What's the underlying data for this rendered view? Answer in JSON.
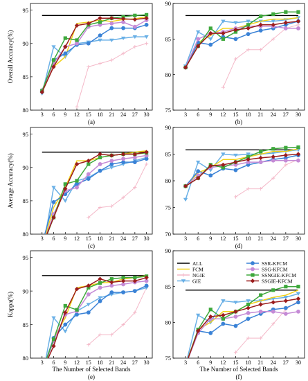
{
  "figure": {
    "shared_xlabel": "The Number of Selected Bands",
    "legend": [
      {
        "key": "all",
        "label": "ALL",
        "color": "#000000",
        "marker": "none"
      },
      {
        "key": "fcm",
        "label": "FCM",
        "color": "#f2d21b",
        "marker": "none"
      },
      {
        "key": "ngie",
        "label": "NGIE",
        "color": "#f4b8c8",
        "marker": "plus"
      },
      {
        "key": "gie",
        "label": "GIE",
        "color": "#6ab0e6",
        "marker": "triangle-down"
      },
      {
        "key": "ssr",
        "label": "SSR-KFCM",
        "color": "#3a82d6",
        "marker": "circle"
      },
      {
        "key": "ssg",
        "label": "SSG-KFCM",
        "color": "#c58bd6",
        "marker": "circle"
      },
      {
        "key": "ssngie",
        "label": "SSNGIE-KFCM",
        "color": "#3ea83c",
        "marker": "square"
      },
      {
        "key": "ssgie",
        "label": "SSGIE-KFCM",
        "color": "#9b1c1c",
        "marker": "diamond"
      }
    ]
  },
  "chart_data": [
    {
      "id": "a",
      "caption": "(a)",
      "type": "line",
      "ylabel": "Overall Accuracy(%)",
      "xlabel": "",
      "ylim": [
        80,
        96
      ],
      "yticks": [
        80,
        85,
        90,
        95
      ],
      "xticks": [
        3,
        6,
        9,
        12,
        15,
        18,
        21,
        24,
        27,
        30
      ],
      "grid": false,
      "all_value": 94.2,
      "all_range": [
        3,
        30
      ],
      "series": [
        {
          "key": "fcm",
          "values": [
            83.0,
            86.5,
            88.0,
            93.0,
            93.2,
            93.5,
            93.3,
            93.6,
            93.7,
            94.0
          ]
        },
        {
          "key": "ngie",
          "values": [
            null,
            null,
            null,
            80.5,
            86.5,
            87.0,
            87.5,
            88.5,
            89.5,
            90.0
          ]
        },
        {
          "key": "gie",
          "values": [
            82.5,
            89.5,
            88.0,
            90.0,
            90.2,
            90.5,
            90.5,
            90.8,
            91.0,
            91.0
          ]
        },
        {
          "key": "ssr",
          "values": [
            82.8,
            87.5,
            88.5,
            89.8,
            90.0,
            91.2,
            92.3,
            92.3,
            92.3,
            92.8
          ]
        },
        {
          "key": "ssg",
          "values": [
            83.0,
            87.0,
            89.5,
            90.0,
            92.5,
            92.8,
            93.0,
            93.2,
            92.5,
            93.5
          ]
        },
        {
          "key": "ssngie",
          "values": [
            82.9,
            87.5,
            90.8,
            90.5,
            92.8,
            93.2,
            93.8,
            94.0,
            94.2,
            94.3
          ]
        },
        {
          "key": "ssgie",
          "values": [
            82.7,
            86.5,
            89.5,
            92.7,
            93.0,
            93.8,
            93.8,
            93.7,
            93.6,
            93.8
          ]
        }
      ]
    },
    {
      "id": "b",
      "caption": "(b)",
      "type": "line",
      "ylabel": "",
      "xlabel": "",
      "ylim": [
        75,
        90
      ],
      "yticks": [
        75,
        80,
        85,
        90
      ],
      "xticks": [
        3,
        6,
        9,
        12,
        15,
        18,
        21,
        24,
        27,
        30
      ],
      "grid": false,
      "all_value": 88.3,
      "all_range": [
        3,
        30
      ],
      "series": [
        {
          "key": "fcm",
          "values": [
            81.0,
            84.5,
            85.5,
            86.5,
            86.5,
            87.0,
            87.5,
            87.8,
            87.8,
            88.0
          ]
        },
        {
          "key": "ngie",
          "values": [
            null,
            null,
            null,
            78.2,
            82.2,
            83.5,
            83.5,
            85.0,
            86.5,
            87.0
          ]
        },
        {
          "key": "gie",
          "values": [
            81.2,
            86.0,
            85.0,
            87.5,
            87.3,
            87.5,
            87.5,
            87.5,
            87.7,
            88.0
          ]
        },
        {
          "key": "ssr",
          "values": [
            81.0,
            84.5,
            84.2,
            85.3,
            85.0,
            85.7,
            86.2,
            86.5,
            87.0,
            87.5
          ]
        },
        {
          "key": "ssg",
          "values": [
            81.0,
            85.0,
            85.8,
            86.0,
            86.5,
            86.8,
            86.8,
            86.8,
            86.5,
            86.5
          ]
        },
        {
          "key": "ssngie",
          "values": [
            81.0,
            84.0,
            86.5,
            85.0,
            86.0,
            87.0,
            88.2,
            88.5,
            88.8,
            88.8
          ]
        },
        {
          "key": "ssgie",
          "values": [
            81.0,
            84.0,
            85.8,
            85.8,
            86.3,
            86.5,
            87.0,
            87.0,
            87.3,
            87.5
          ]
        }
      ]
    },
    {
      "id": "c",
      "caption": "(c)",
      "type": "line",
      "ylabel": "Average Accuracy(%)",
      "xlabel": "",
      "ylim": [
        80,
        96
      ],
      "yticks": [
        80,
        85,
        90,
        95
      ],
      "xticks": [
        3,
        6,
        9,
        12,
        15,
        18,
        21,
        24,
        27,
        30
      ],
      "grid": false,
      "all_value": 92.3,
      "all_range": [
        3,
        30
      ],
      "series": [
        {
          "key": "fcm",
          "values": [
            78.0,
            84.0,
            87.0,
            91.0,
            91.0,
            91.5,
            91.8,
            92.0,
            92.3,
            92.5
          ]
        },
        {
          "key": "ngie",
          "values": [
            null,
            null,
            null,
            null,
            82.5,
            84.0,
            84.2,
            85.5,
            87.0,
            90.5
          ]
        },
        {
          "key": "gie",
          "values": [
            77.0,
            87.0,
            85.0,
            88.0,
            88.5,
            89.5,
            90.0,
            90.5,
            91.0,
            91.5
          ]
        },
        {
          "key": "ssr",
          "values": [
            78.5,
            84.8,
            86.0,
            87.5,
            88.3,
            89.5,
            90.5,
            90.8,
            90.8,
            91.3
          ]
        },
        {
          "key": "ssg",
          "values": [
            78.0,
            83.0,
            86.5,
            87.0,
            89.0,
            90.5,
            91.0,
            91.3,
            91.5,
            91.8
          ]
        },
        {
          "key": "ssngie",
          "values": [
            78.0,
            82.5,
            87.5,
            88.0,
            90.5,
            91.5,
            91.8,
            92.0,
            92.0,
            92.2
          ]
        },
        {
          "key": "ssgie",
          "values": [
            78.2,
            82.5,
            86.8,
            90.5,
            91.0,
            92.0,
            91.8,
            92.0,
            92.0,
            92.3
          ]
        }
      ]
    },
    {
      "id": "d",
      "caption": "(d)",
      "type": "line",
      "ylabel": "",
      "xlabel": "",
      "ylim": [
        70,
        90
      ],
      "yticks": [
        70,
        75,
        80,
        85,
        90
      ],
      "xticks": [
        3,
        6,
        9,
        12,
        15,
        18,
        21,
        24,
        27,
        30
      ],
      "grid": false,
      "all_value": 85.8,
      "all_range": [
        3,
        30
      ],
      "series": [
        {
          "key": "fcm",
          "values": [
            79.0,
            81.5,
            82.5,
            84.0,
            84.0,
            84.5,
            85.0,
            85.5,
            85.5,
            86.0
          ]
        },
        {
          "key": "ngie",
          "values": [
            null,
            null,
            null,
            null,
            77.0,
            78.5,
            78.5,
            80.5,
            83.0,
            84.0
          ]
        },
        {
          "key": "gie",
          "values": [
            76.5,
            83.5,
            82.0,
            85.0,
            84.8,
            85.0,
            85.0,
            85.2,
            85.5,
            85.8
          ]
        },
        {
          "key": "ssr",
          "values": [
            79.0,
            81.8,
            81.0,
            82.3,
            82.0,
            83.0,
            83.5,
            84.0,
            84.3,
            84.8
          ]
        },
        {
          "key": "ssg",
          "values": [
            79.0,
            81.0,
            82.5,
            82.8,
            83.0,
            83.5,
            83.5,
            83.8,
            83.8,
            83.8
          ]
        },
        {
          "key": "ssngie",
          "values": [
            79.0,
            80.5,
            83.0,
            82.5,
            83.5,
            84.5,
            85.5,
            86.0,
            86.2,
            86.3
          ]
        },
        {
          "key": "ssgie",
          "values": [
            79.0,
            80.5,
            82.8,
            83.0,
            83.5,
            84.0,
            84.3,
            84.5,
            84.8,
            85.0
          ]
        }
      ]
    },
    {
      "id": "e",
      "caption": "(e)",
      "type": "line",
      "ylabel": "Kappa(%)",
      "xlabel": "The Number of Selected Bands",
      "ylim": [
        80,
        96
      ],
      "yticks": [
        80,
        85,
        90,
        95
      ],
      "xticks": [
        3,
        6,
        9,
        12,
        15,
        18,
        21,
        24,
        27,
        30
      ],
      "grid": false,
      "all_value": 92.3,
      "all_range": [
        3,
        30
      ],
      "series": [
        {
          "key": "fcm",
          "values": [
            78.0,
            83.0,
            86.0,
            90.5,
            90.8,
            91.2,
            91.3,
            91.8,
            92.0,
            92.3
          ]
        },
        {
          "key": "ngie",
          "values": [
            null,
            null,
            null,
            null,
            82.0,
            83.5,
            83.5,
            85.0,
            86.8,
            90.5
          ]
        },
        {
          "key": "gie",
          "values": [
            77.0,
            86.0,
            84.0,
            87.0,
            88.0,
            89.0,
            89.5,
            89.8,
            90.0,
            90.5
          ]
        },
        {
          "key": "ssr",
          "values": [
            78.0,
            83.0,
            85.0,
            86.5,
            86.8,
            88.5,
            89.8,
            89.8,
            90.0,
            90.8
          ]
        },
        {
          "key": "ssg",
          "values": [
            78.0,
            82.5,
            86.5,
            87.0,
            89.5,
            90.5,
            90.8,
            91.0,
            91.3,
            91.5
          ]
        },
        {
          "key": "ssngie",
          "values": [
            78.0,
            82.8,
            87.8,
            87.2,
            90.5,
            91.2,
            91.8,
            92.0,
            92.0,
            92.2
          ]
        },
        {
          "key": "ssgie",
          "values": [
            78.0,
            81.8,
            86.8,
            90.3,
            90.8,
            91.8,
            91.3,
            91.5,
            91.5,
            92.0
          ]
        }
      ]
    },
    {
      "id": "f",
      "caption": "(f)",
      "type": "line",
      "ylabel": "",
      "xlabel": "The Number of Selected Bands",
      "ylim": [
        75,
        90
      ],
      "yticks": [
        75,
        80,
        85,
        90
      ],
      "xticks": [
        3,
        6,
        9,
        12,
        15,
        18,
        21,
        24,
        27,
        30
      ],
      "grid": false,
      "all_value": 84.5,
      "all_range": [
        3,
        30
      ],
      "series": [
        {
          "key": "fcm",
          "values": [
            74.0,
            79.0,
            80.0,
            81.5,
            81.5,
            82.5,
            83.0,
            83.5,
            83.8,
            84.5
          ]
        },
        {
          "key": "ngie",
          "values": [
            null,
            null,
            null,
            null,
            75.8,
            77.8,
            77.8,
            79.8,
            81.8,
            83.0
          ]
        },
        {
          "key": "gie",
          "values": [
            74.0,
            81.0,
            80.0,
            83.0,
            82.8,
            83.0,
            83.0,
            83.3,
            83.5,
            84.0
          ]
        },
        {
          "key": "ssr",
          "values": [
            74.0,
            78.8,
            78.5,
            79.8,
            79.5,
            80.5,
            81.2,
            81.8,
            82.0,
            82.8
          ]
        },
        {
          "key": "ssg",
          "values": [
            74.0,
            78.5,
            80.5,
            80.5,
            80.8,
            81.3,
            81.5,
            81.5,
            81.2,
            81.5
          ]
        },
        {
          "key": "ssngie",
          "values": [
            74.0,
            79.0,
            81.8,
            80.5,
            81.5,
            82.5,
            83.8,
            84.5,
            85.0,
            85.0
          ]
        },
        {
          "key": "ssgie",
          "values": [
            74.0,
            78.8,
            80.8,
            81.0,
            81.5,
            82.0,
            82.5,
            82.8,
            83.0,
            83.3
          ]
        }
      ]
    }
  ]
}
